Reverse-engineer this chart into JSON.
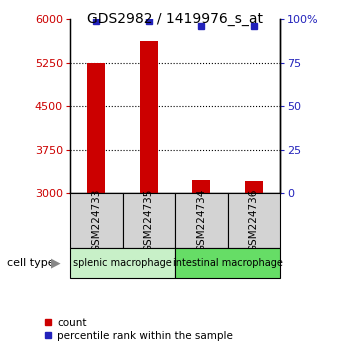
{
  "title": "GDS2982 / 1419976_s_at",
  "samples": [
    "GSM224733",
    "GSM224735",
    "GSM224734",
    "GSM224736"
  ],
  "counts": [
    5250,
    5620,
    3220,
    3210
  ],
  "percentiles": [
    99,
    99,
    96.5,
    96
  ],
  "ymin": 3000,
  "ymax": 6000,
  "yticks": [
    3000,
    3750,
    4500,
    5250,
    6000
  ],
  "right_ytick_labels": [
    "0",
    "25",
    "50",
    "75",
    "100%"
  ],
  "bar_color": "#cc0000",
  "dot_color": "#2222bb",
  "left_label_color": "#cc0000",
  "right_label_color": "#2222bb",
  "cell_type_label": "cell type",
  "legend_count": "count",
  "legend_percentile": "percentile rank within the sample",
  "bar_width": 0.35,
  "group1_color": "#c8f0c8",
  "group2_color": "#66dd66",
  "sample_box_color": "#d3d3d3"
}
